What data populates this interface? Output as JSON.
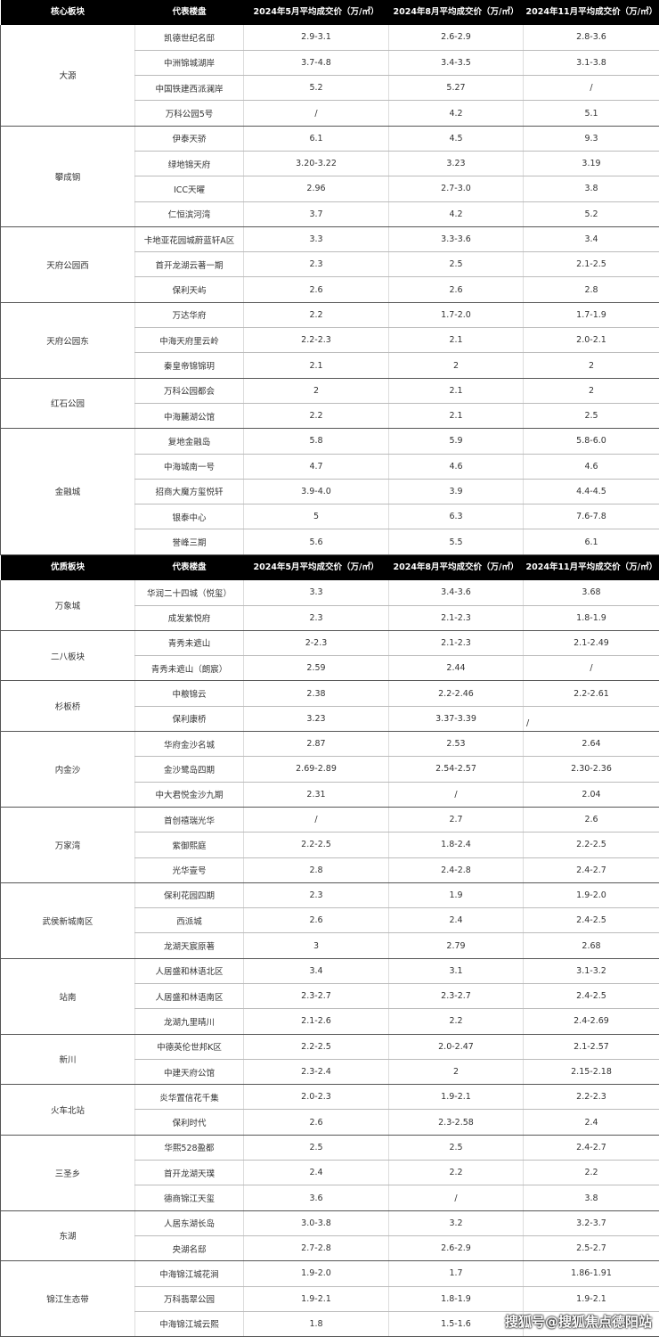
{
  "table1": {
    "headers": [
      "核心板块",
      "代表楼盘",
      "2024年5月平均成交价（万/㎡）",
      "2024年8月平均成交价（万/㎡）",
      "2024年11月平均成交价（万/㎡）"
    ],
    "groups": [
      {
        "name": "大源",
        "rows": [
          [
            "凯德世纪名邸",
            "2.9-3.1",
            "2.6-2.9",
            "2.8-3.6"
          ],
          [
            "中洲锦城湖岸",
            "3.7-4.8",
            "3.4-3.5",
            "3.1-3.8"
          ],
          [
            "中国铁建西派澜岸",
            "5.2",
            "5.27",
            "/"
          ],
          [
            "万科公园5号",
            "/",
            "4.2",
            "5.1"
          ]
        ]
      },
      {
        "name": "攀成钢",
        "rows": [
          [
            "伊泰天骄",
            "6.1",
            "4.5",
            "9.3"
          ],
          [
            "绿地锦天府",
            "3.20-3.22",
            "3.23",
            "3.19"
          ],
          [
            "ICC天曜",
            "2.96",
            "2.7-3.0",
            "3.8"
          ],
          [
            "仁恒滨河湾",
            "3.7",
            "4.2",
            "5.2"
          ]
        ]
      },
      {
        "name": "天府公园西",
        "rows": [
          [
            "卡地亚花园城蔚蓝轩A区",
            "3.3",
            "3.3-3.6",
            "3.4"
          ],
          [
            "首开龙湖云著一期",
            "2.3",
            "2.5",
            "2.1-2.5"
          ],
          [
            "保利天屿",
            "2.6",
            "2.6",
            "2.8"
          ]
        ]
      },
      {
        "name": "天府公园东",
        "rows": [
          [
            "万达华府",
            "2.2",
            "1.7-2.0",
            "1.7-1.9"
          ],
          [
            "中海天府里云岭",
            "2.2-2.3",
            "2.1",
            "2.0-2.1"
          ],
          [
            "秦皇帝锦锦玥",
            "2.1",
            "2",
            "2"
          ]
        ]
      },
      {
        "name": "红石公园",
        "rows": [
          [
            "万科公园都会",
            "2",
            "2.1",
            "2"
          ],
          [
            "中海麓湖公馆",
            "2.2",
            "2.1",
            "2.5"
          ]
        ]
      },
      {
        "name": "金融城",
        "rows": [
          [
            "复地金融岛",
            "5.8",
            "5.9",
            "5.8-6.0"
          ],
          [
            "中海城南一号",
            "4.7",
            "4.6",
            "4.6"
          ],
          [
            "招商大魔方玺悦轩",
            "3.9-4.0",
            "3.9",
            "4.4-4.5"
          ],
          [
            "银泰中心",
            "5",
            "6.3",
            "7.6-7.8"
          ],
          [
            "誉峰三期",
            "5.6",
            "5.5",
            "6.1"
          ]
        ]
      }
    ]
  },
  "table2": {
    "headers": [
      "优质板块",
      "代表楼盘",
      "2024年5月平均成交价（万/㎡）",
      "2024年8月平均成交价（万/㎡）",
      "2024年11月平均成交价（万/㎡）"
    ],
    "groups": [
      {
        "name": "万象城",
        "rows": [
          [
            "华润二十四城（悦玺）",
            "3.3",
            "3.4-3.6",
            "3.68"
          ],
          [
            "成发紫悦府",
            "2.3",
            "2.1-2.3",
            "1.8-1.9"
          ]
        ]
      },
      {
        "name": "二八板块",
        "rows": [
          [
            "青秀未遮山",
            "2-2.3",
            "2.1-2.3",
            "2.1-2.49"
          ],
          [
            "青秀未遮山（朗宸）",
            "2.59",
            "2.44",
            "/"
          ]
        ]
      },
      {
        "name": "杉板桥",
        "rows": [
          [
            "中粮锦云",
            "2.38",
            "2.2-2.46",
            "2.2-2.61"
          ],
          [
            "保利康桥",
            "3.23",
            "3.37-3.39",
            "/"
          ]
        ]
      },
      {
        "name": "内金沙",
        "rows": [
          [
            "华府金沙名城",
            "2.87",
            "2.53",
            "2.64"
          ],
          [
            "金沙鹭岛四期",
            "2.69-2.89",
            "2.54-2.57",
            "2.30-2.36"
          ],
          [
            "中大君悦金沙九期",
            "2.31",
            "/",
            "2.04"
          ]
        ]
      },
      {
        "name": "万家湾",
        "rows": [
          [
            "首创禧瑞光华",
            "/",
            "2.7",
            "2.6"
          ],
          [
            "紫御熙庭",
            "2.2-2.5",
            "1.8-2.4",
            "2.2-2.5"
          ],
          [
            "光华壹号",
            "2.8",
            "2.4-2.8",
            "2.4-2.7"
          ]
        ]
      },
      {
        "name": "武侯新城南区",
        "rows": [
          [
            "保利花园四期",
            "2.3",
            "1.9",
            "1.9-2.0"
          ],
          [
            "西派城",
            "2.6",
            "2.4",
            "2.4-2.5"
          ],
          [
            "龙湖天宸原著",
            "3",
            "2.79",
            "2.68"
          ]
        ]
      },
      {
        "name": "站南",
        "rows": [
          [
            "人居盛和林语北区",
            "3.4",
            "3.1",
            "3.1-3.2"
          ],
          [
            "人居盛和林语南区",
            "2.3-2.7",
            "2.3-2.7",
            "2.4-2.5"
          ],
          [
            "龙湖九里晴川",
            "2.1-2.6",
            "2.2",
            "2.4-2.69"
          ]
        ]
      },
      {
        "name": "新川",
        "rows": [
          [
            "中德英伦世邦K区",
            "2.2-2.5",
            "2.0-2.47",
            "2.1-2.57"
          ],
          [
            "中建天府公馆",
            "2.3-2.4",
            "2",
            "2.15-2.18"
          ]
        ]
      },
      {
        "name": "火车北站",
        "rows": [
          [
            "炎华置信花千集",
            "2.0-2.3",
            "1.9-2.1",
            "2.2-2.3"
          ],
          [
            "保利时代",
            "2.6",
            "2.3-2.58",
            "2.4"
          ]
        ]
      },
      {
        "name": "三圣乡",
        "rows": [
          [
            "华熙528盈都",
            "2.5",
            "2.5",
            "2.4-2.7"
          ],
          [
            "首开龙湖天璞",
            "2.4",
            "2.2",
            "2.2"
          ],
          [
            "德商锦江天玺",
            "3.6",
            "/",
            "3.8"
          ]
        ]
      },
      {
        "name": "东湖",
        "rows": [
          [
            "人居东湖长岛",
            "3.0-3.8",
            "3.2",
            "3.2-3.7"
          ],
          [
            "央湖名邸",
            "2.7-2.8",
            "2.6-2.9",
            "2.5-2.7"
          ]
        ]
      },
      {
        "name": "锦江生态带",
        "rows": [
          [
            "中海锦江城花涧",
            "1.9-2.0",
            "1.7",
            "1.86-1.91"
          ],
          [
            "万科翡翠公园",
            "1.9-2.1",
            "1.8-1.9",
            "1.9-2.1"
          ],
          [
            "中海锦江城云熙",
            "1.8",
            "1.5-1.6",
            ""
          ]
        ]
      }
    ]
  },
  "watermark": "搜狐号@搜狐焦点德阳站"
}
